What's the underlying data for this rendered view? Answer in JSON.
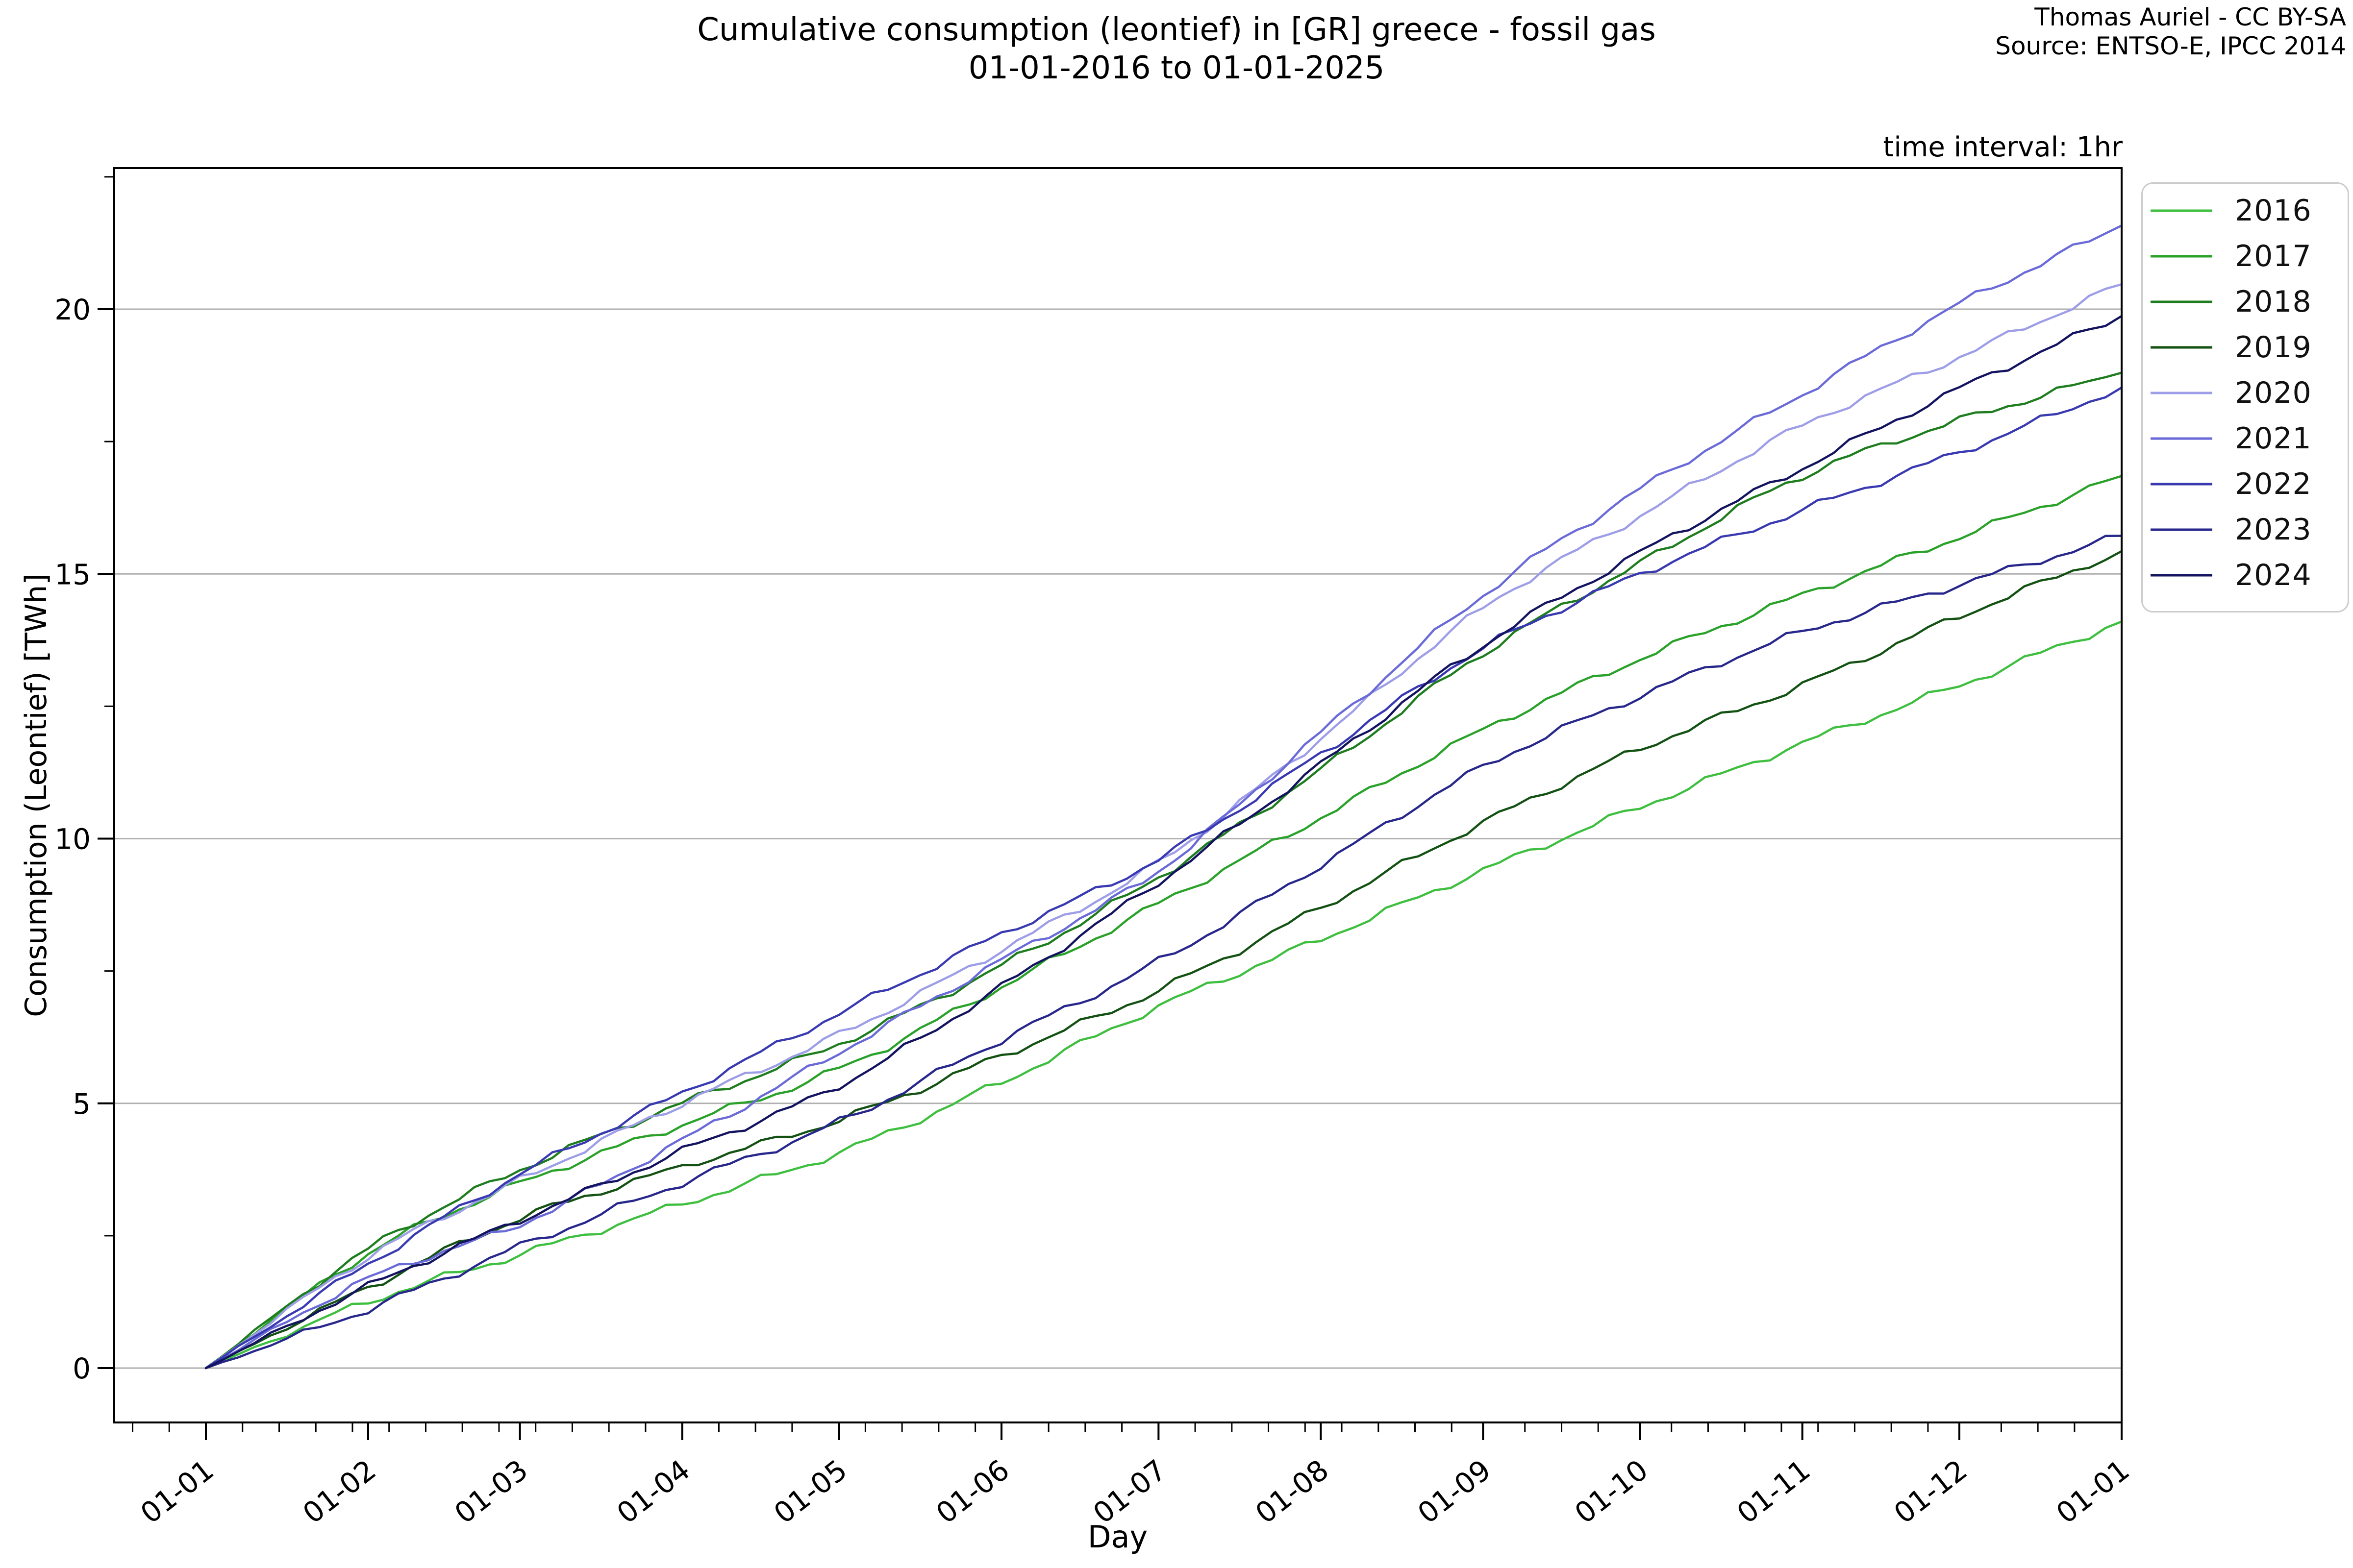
{
  "figure": {
    "title_line1": "Cumulative consumption (leontief) in [GR] greece - fossil gas",
    "title_line2": "01-01-2016 to 01-01-2025",
    "attribution_line1": "Thomas Auriel - CC BY-SA",
    "attribution_line2": "Source: ENTSO-E, IPCC 2014",
    "note": "time interval: 1hr"
  },
  "chart_data": {
    "type": "line",
    "title": "Cumulative consumption (leontief) in [GR] greece - fossil gas 01-01-2016 to 01-01-2025",
    "xlabel": "Day",
    "ylabel": "Consumption (Leontief) [TWh]",
    "x_tick_labels": [
      "01-01",
      "01-02",
      "01-03",
      "01-04",
      "01-05",
      "01-06",
      "01-07",
      "01-08",
      "01-09",
      "01-10",
      "01-11",
      "01-12",
      "01-01"
    ],
    "x_tick_days": [
      0,
      31,
      60,
      91,
      121,
      152,
      182,
      213,
      244,
      274,
      305,
      335,
      366
    ],
    "y_ticks": [
      0,
      5,
      10,
      15,
      20
    ],
    "y_minor_step": 2.5,
    "ylim": [
      -1.0,
      22.7
    ],
    "xlim_days": [
      -17.5,
      366
    ],
    "grid": true,
    "gridline_color": "#b0b0b0",
    "legend_position": "outside-right-top",
    "units": "TWh",
    "series": [
      {
        "name": "2016",
        "color": "#3fbf3f",
        "monthly_values": [
          0,
          1.25,
          2.15,
          3.1,
          4.07,
          5.4,
          6.83,
          8.1,
          9.4,
          10.6,
          11.8,
          12.9,
          14.1
        ]
      },
      {
        "name": "2017",
        "color": "#2aa22a",
        "monthly_values": [
          0,
          2.16,
          3.49,
          4.6,
          5.65,
          7.2,
          8.77,
          10.4,
          12.05,
          13.4,
          14.6,
          15.7,
          16.85
        ]
      },
      {
        "name": "2018",
        "color": "#1e7d1e",
        "monthly_values": [
          0,
          2.24,
          3.75,
          5.0,
          6.13,
          7.6,
          9.28,
          11.3,
          13.5,
          15.2,
          16.85,
          17.9,
          18.8
        ]
      },
      {
        "name": "2019",
        "color": "#145214",
        "monthly_values": [
          0,
          1.52,
          2.83,
          3.8,
          4.69,
          5.9,
          7.14,
          8.7,
          10.3,
          11.7,
          12.9,
          14.2,
          15.43
        ]
      },
      {
        "name": "2020",
        "color": "#9e9ee8",
        "monthly_values": [
          0,
          2.1,
          3.55,
          5.0,
          6.3,
          7.9,
          9.55,
          11.9,
          14.35,
          16.1,
          17.8,
          19.1,
          20.47
        ]
      },
      {
        "name": "2021",
        "color": "#6a6ad8",
        "monthly_values": [
          0,
          1.68,
          2.72,
          4.3,
          5.97,
          7.7,
          9.4,
          12.0,
          14.6,
          16.6,
          18.4,
          20.1,
          21.58
        ]
      },
      {
        "name": "2022",
        "color": "#3939b2",
        "monthly_values": [
          0,
          1.96,
          3.67,
          5.2,
          6.7,
          8.2,
          9.62,
          11.6,
          13.6,
          15.0,
          16.2,
          17.3,
          18.52
        ]
      },
      {
        "name": "2023",
        "color": "#27278c",
        "monthly_values": [
          0,
          1.11,
          2.3,
          3.5,
          4.65,
          6.2,
          7.68,
          9.5,
          11.35,
          12.7,
          13.9,
          14.8,
          15.72
        ]
      },
      {
        "name": "2024",
        "color": "#131360",
        "monthly_values": [
          0,
          1.54,
          2.8,
          4.1,
          5.34,
          7.2,
          9.18,
          11.4,
          13.65,
          15.4,
          17.0,
          18.5,
          19.87
        ]
      }
    ]
  }
}
